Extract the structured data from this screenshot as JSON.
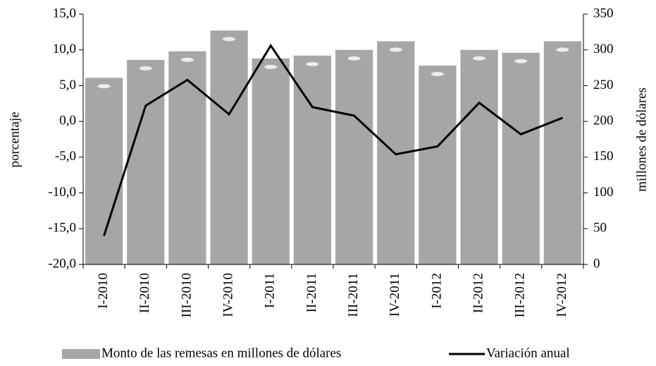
{
  "chart_data": {
    "type": "bar_line",
    "categories": [
      "I-2010",
      "II-2010",
      "III-2010",
      "IV-2010",
      "I-2011",
      "II-2011",
      "III-2011",
      "IV-2011",
      "I-2012",
      "II-2012",
      "III-2012",
      "IV-2012"
    ],
    "series": [
      {
        "name": "Monto de las remesas en millones de dólares",
        "type": "bar",
        "axis": "y2",
        "color": "#a6a6a6",
        "values": [
          261,
          286,
          298,
          327,
          288,
          292,
          300,
          312,
          278,
          300,
          296,
          312
        ]
      },
      {
        "name": "Variación anual",
        "type": "line",
        "axis": "y",
        "color": "#000000",
        "values": [
          -16.0,
          2.2,
          5.8,
          1.0,
          10.6,
          2.0,
          0.8,
          -4.6,
          -3.5,
          2.6,
          -1.8,
          0.5
        ]
      }
    ],
    "y_label": "porcentaje",
    "y2_label": "millones de dólares",
    "ylim": [
      -20,
      15
    ],
    "yticks": [
      {
        "value": -20,
        "label": "-20,0"
      },
      {
        "value": -15,
        "label": "-15,0"
      },
      {
        "value": -10,
        "label": "-10,0"
      },
      {
        "value": -5,
        "label": "-5,0"
      },
      {
        "value": 0,
        "label": "0,0"
      },
      {
        "value": 5,
        "label": "5,0"
      },
      {
        "value": 10,
        "label": "10,0"
      },
      {
        "value": 15,
        "label": "15,0"
      }
    ],
    "y2lim": [
      0,
      350
    ],
    "y2ticks": [
      0,
      50,
      100,
      150,
      200,
      250,
      300,
      350
    ],
    "legend": "bottom"
  }
}
